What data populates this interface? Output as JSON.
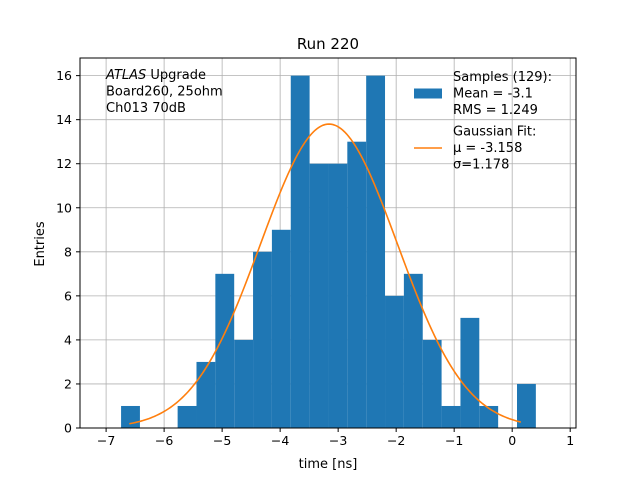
{
  "chart_data": {
    "type": "bar",
    "title": "Run 220",
    "xlabel": "time [ns]",
    "ylabel": "Entries",
    "xlim": [
      -7.45,
      1.1
    ],
    "ylim": [
      0,
      16.8
    ],
    "xticks": [
      -7,
      -6,
      -5,
      -4,
      -3,
      -2,
      -1,
      0,
      1
    ],
    "xtick_labels": [
      "−7",
      "−6",
      "−5",
      "−4",
      "−3",
      "−2",
      "−1",
      "0",
      "1"
    ],
    "yticks": [
      0,
      2,
      4,
      6,
      8,
      10,
      12,
      14,
      16
    ],
    "ytick_labels": [
      "0",
      "2",
      "4",
      "6",
      "8",
      "10",
      "12",
      "14",
      "16"
    ],
    "grid": true,
    "bin_width": 0.325,
    "bin_edges_start": -6.742,
    "series": [
      {
        "name": "Samples (129):",
        "type": "histogram",
        "color": "#1f77b4",
        "counts": [
          1,
          0,
          0,
          1,
          3,
          7,
          4,
          8,
          9,
          16,
          12,
          12,
          13,
          16,
          6,
          7,
          4,
          1,
          5,
          1,
          0,
          2
        ]
      },
      {
        "name": "Gaussian Fit:",
        "type": "line",
        "color": "#ff7f0e",
        "mu": -3.158,
        "sigma": 1.178,
        "amplitude": 13.8,
        "x_range": [
          -6.6,
          0.15
        ]
      }
    ],
    "legend": {
      "position": "top-right",
      "entries": [
        {
          "lines": [
            "Samples (129):",
            " Mean = -3.1",
            " RMS = 1.249"
          ],
          "kind": "patch",
          "color": "#1f77b4"
        },
        {
          "lines": [
            "Gaussian Fit:",
            " μ = -3.158",
            " σ=1.178"
          ],
          "kind": "line",
          "color": "#ff7f0e"
        }
      ]
    },
    "annotation": {
      "position": "top-left",
      "lines": [
        "ATLAS Upgrade",
        " Board260, 25ohm",
        " Ch013 70dB"
      ],
      "italic_word": "ATLAS"
    }
  }
}
